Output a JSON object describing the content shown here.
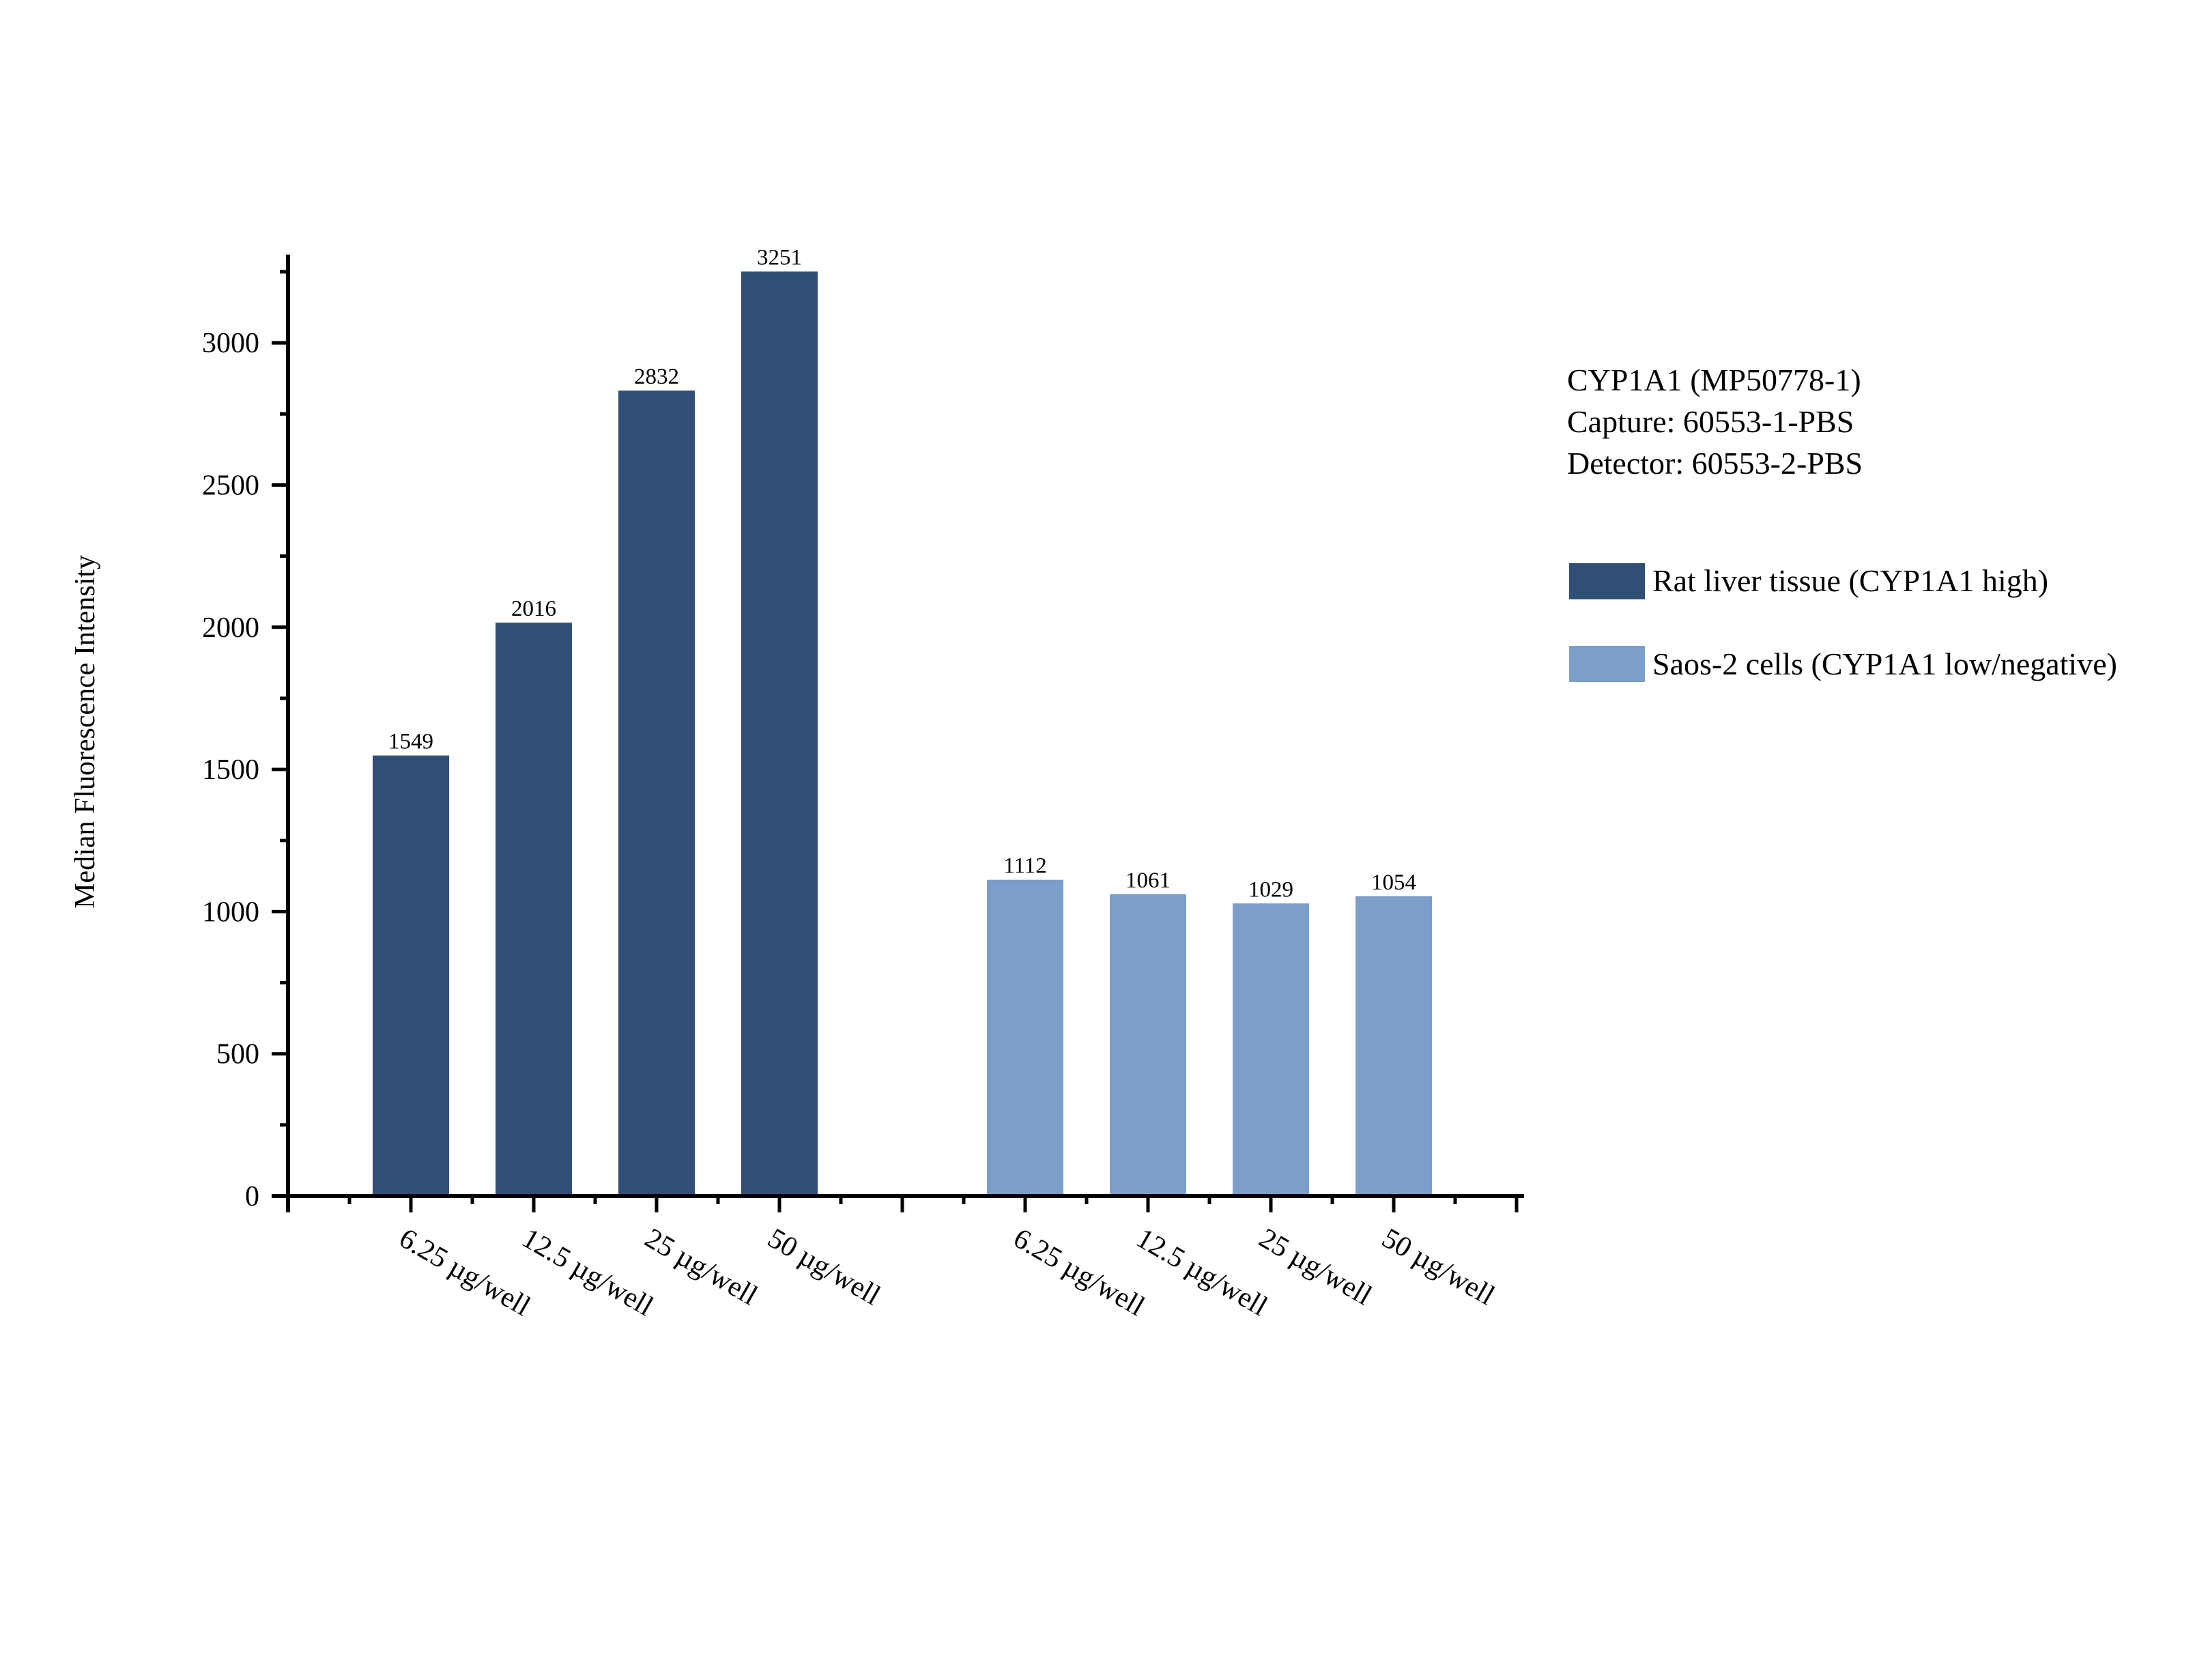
{
  "chart_data": {
    "type": "bar",
    "title": "",
    "xlabel": "",
    "ylabel": "Median Fluorescence Intensity",
    "ylim": [
      0,
      3300
    ],
    "yticks": [
      0,
      500,
      1000,
      1500,
      2000,
      2500,
      3000
    ],
    "grid": false,
    "legend_position": "right",
    "annotation_lines": [
      "CYP1A1 (MP50778-1)",
      "Capture: 60553-1-PBS",
      "Detector: 60553-2-PBS"
    ],
    "groups": [
      {
        "name": "Rat liver tissue (CYP1A1 high)",
        "color": "#2f4f77",
        "categories": [
          "6.25 µg/well",
          "12.5 µg/well",
          "25 µg/well",
          "50 µg/well"
        ],
        "values": [
          1549,
          2016,
          2832,
          3251
        ]
      },
      {
        "name": "Saos-2 cells (CYP1A1 low/negative)",
        "color": "#7c9ecb",
        "categories": [
          "6.25 µg/well",
          "12.5 µg/well",
          "25 µg/well",
          "50 µg/well"
        ],
        "values": [
          1112,
          1061,
          1029,
          1054
        ]
      }
    ]
  },
  "legend": {
    "info": [
      "CYP1A1 (MP50778-1)",
      "Capture: 60553-1-PBS",
      "Detector: 60553-2-PBS"
    ],
    "items": [
      {
        "label": "Rat liver tissue (CYP1A1 high)",
        "color": "#2f4f77"
      },
      {
        "label": "Saos-2 cells (CYP1A1 low/negative)",
        "color": "#7c9ecb"
      }
    ]
  }
}
